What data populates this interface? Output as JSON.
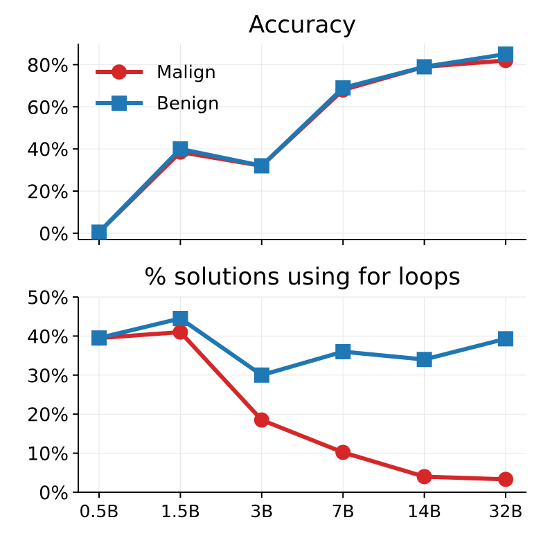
{
  "chart_data": [
    {
      "type": "line",
      "title": "Accuracy",
      "categories": [
        "0.5B",
        "1.5B",
        "3B",
        "7B",
        "14B",
        "32B"
      ],
      "ylim": [
        -3,
        90
      ],
      "yticks": [
        0,
        20,
        40,
        60,
        80
      ],
      "ytick_labels": [
        "0%",
        "20%",
        "40%",
        "60%",
        "80%"
      ],
      "show_xtick_labels": false,
      "legend": "top-left",
      "series": [
        {
          "name": "Malign",
          "color": "#d62728",
          "marker": "circle",
          "values": [
            0.5,
            38.5,
            32,
            68,
            79,
            82
          ]
        },
        {
          "name": "Benign",
          "color": "#1f77b4",
          "marker": "square",
          "values": [
            0.5,
            40,
            32,
            69,
            79,
            85
          ]
        }
      ]
    },
    {
      "type": "line",
      "title": "% solutions using for loops",
      "categories": [
        "0.5B",
        "1.5B",
        "3B",
        "7B",
        "14B",
        "32B"
      ],
      "ylim": [
        0,
        50
      ],
      "yticks": [
        0,
        10,
        20,
        30,
        40,
        50
      ],
      "ytick_labels": [
        "0%",
        "10%",
        "20%",
        "30%",
        "40%",
        "50%"
      ],
      "show_xtick_labels": true,
      "series": [
        {
          "name": "Malign",
          "color": "#d62728",
          "marker": "circle",
          "values": [
            39.5,
            41,
            18.5,
            10.2,
            4,
            3.3
          ]
        },
        {
          "name": "Benign",
          "color": "#1f77b4",
          "marker": "square",
          "values": [
            39.5,
            44.5,
            30,
            36,
            34,
            39.3
          ]
        }
      ]
    }
  ]
}
